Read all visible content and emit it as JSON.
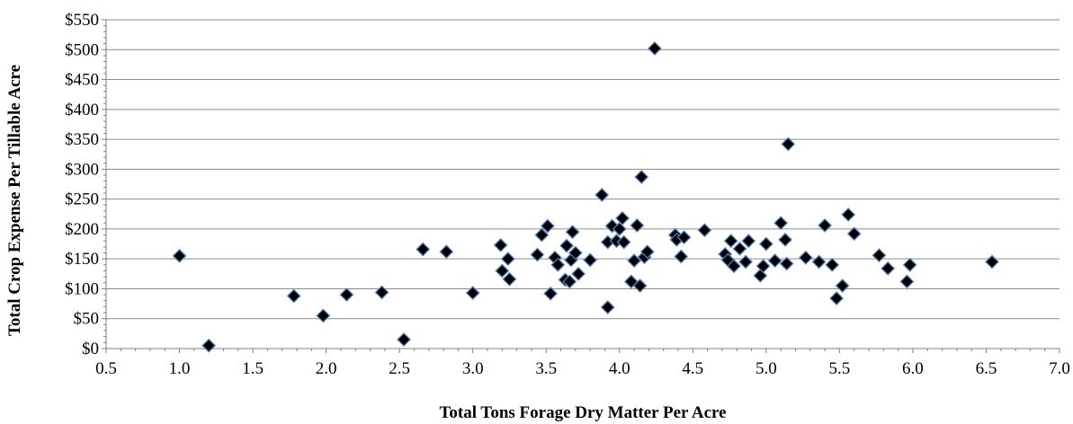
{
  "chart_data": {
    "type": "scatter",
    "title": "",
    "xlabel": "Total Tons Forage Dry Matter Per Acre",
    "ylabel": "Total Crop Expense Per Tillable Acre",
    "xlim": [
      0.5,
      7.0
    ],
    "ylim": [
      0,
      550
    ],
    "x_ticks": [
      0.5,
      1.0,
      1.5,
      2.0,
      2.5,
      3.0,
      3.5,
      4.0,
      4.5,
      5.0,
      5.5,
      6.0,
      6.5,
      7.0
    ],
    "x_tick_labels": [
      "0.5",
      "1.0",
      "1.5",
      "2.0",
      "2.5",
      "3.0",
      "3.5",
      "4.0",
      "4.5",
      "5.0",
      "5.5",
      "6.0",
      "6.5",
      "7.0"
    ],
    "y_ticks": [
      0,
      50,
      100,
      150,
      200,
      250,
      300,
      350,
      400,
      450,
      500,
      550
    ],
    "y_tick_labels": [
      "$0",
      "$50",
      "$100",
      "$150",
      "$200",
      "$250",
      "$300",
      "$350",
      "$400",
      "$450",
      "$500",
      "$550"
    ],
    "grid": "horizontal",
    "legend": "none",
    "marker_color": "#000000",
    "marker_edge_color": "#4f81bd",
    "series": [
      {
        "points": [
          [
            1.0,
            155
          ],
          [
            1.2,
            5
          ],
          [
            1.78,
            88
          ],
          [
            1.98,
            55
          ],
          [
            2.14,
            90
          ],
          [
            2.38,
            94
          ],
          [
            2.53,
            15
          ],
          [
            2.66,
            166
          ],
          [
            2.82,
            162
          ],
          [
            3.0,
            93
          ],
          [
            3.19,
            173
          ],
          [
            3.2,
            130
          ],
          [
            3.24,
            150
          ],
          [
            3.25,
            116
          ],
          [
            3.44,
            157
          ],
          [
            3.47,
            190
          ],
          [
            3.51,
            205
          ],
          [
            3.53,
            92
          ],
          [
            3.56,
            152
          ],
          [
            3.58,
            140
          ],
          [
            3.63,
            115
          ],
          [
            3.64,
            172
          ],
          [
            3.66,
            112
          ],
          [
            3.67,
            148
          ],
          [
            3.68,
            195
          ],
          [
            3.7,
            160
          ],
          [
            3.72,
            125
          ],
          [
            3.8,
            148
          ],
          [
            3.88,
            257
          ],
          [
            3.92,
            69
          ],
          [
            3.92,
            178
          ],
          [
            3.95,
            205
          ],
          [
            3.98,
            180
          ],
          [
            4.0,
            200
          ],
          [
            4.02,
            218
          ],
          [
            4.03,
            178
          ],
          [
            4.08,
            112
          ],
          [
            4.1,
            147
          ],
          [
            4.12,
            206
          ],
          [
            4.14,
            105
          ],
          [
            4.15,
            287
          ],
          [
            4.17,
            153
          ],
          [
            4.19,
            162
          ],
          [
            4.24,
            502
          ],
          [
            4.38,
            190
          ],
          [
            4.39,
            182
          ],
          [
            4.42,
            154
          ],
          [
            4.44,
            186
          ],
          [
            4.58,
            198
          ],
          [
            4.72,
            158
          ],
          [
            4.74,
            148
          ],
          [
            4.76,
            180
          ],
          [
            4.78,
            138
          ],
          [
            4.82,
            167
          ],
          [
            4.86,
            145
          ],
          [
            4.88,
            180
          ],
          [
            4.96,
            122
          ],
          [
            4.98,
            138
          ],
          [
            5.0,
            175
          ],
          [
            5.06,
            147
          ],
          [
            5.1,
            210
          ],
          [
            5.13,
            182
          ],
          [
            5.14,
            142
          ],
          [
            5.15,
            342
          ],
          [
            5.27,
            152
          ],
          [
            5.36,
            145
          ],
          [
            5.4,
            206
          ],
          [
            5.45,
            140
          ],
          [
            5.48,
            84
          ],
          [
            5.52,
            105
          ],
          [
            5.56,
            224
          ],
          [
            5.6,
            192
          ],
          [
            5.77,
            156
          ],
          [
            5.83,
            134
          ],
          [
            5.96,
            112
          ],
          [
            5.98,
            140
          ],
          [
            6.54,
            145
          ]
        ]
      }
    ]
  }
}
